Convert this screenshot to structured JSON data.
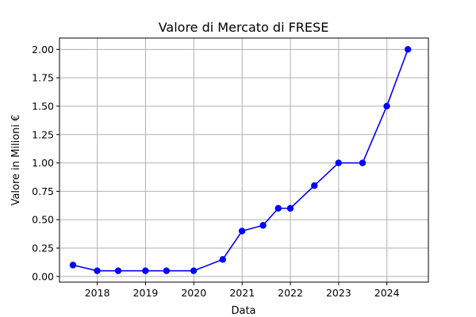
{
  "chart_data": {
    "type": "line",
    "title": "Valore di Mercato di FRESE",
    "xlabel": "Data",
    "ylabel": "Valore in Milioni €",
    "x_ticks": [
      "2018",
      "2019",
      "2020",
      "2021",
      "2022",
      "2023",
      "2024"
    ],
    "y_ticks": [
      "0.00",
      "0.25",
      "0.50",
      "0.75",
      "1.00",
      "1.25",
      "1.50",
      "1.75",
      "2.00"
    ],
    "xlim": [
      "2017-03-21",
      "2024-11-10"
    ],
    "ylim": [
      -0.05,
      2.1
    ],
    "grid": true,
    "series": [
      {
        "color": "#0000ff",
        "x": [
          "2017-07-01",
          "2017-12-31",
          "2018-06-08",
          "2018-12-31",
          "2019-06-08",
          "2019-12-31",
          "2020-08-07",
          "2020-12-31",
          "2021-06-08",
          "2021-10-01",
          "2021-12-31",
          "2022-07-01",
          "2022-12-31",
          "2023-07-01",
          "2023-12-31",
          "2024-06-08"
        ],
        "y": [
          0.1,
          0.05,
          0.05,
          0.05,
          0.05,
          0.05,
          0.15,
          0.4,
          0.45,
          0.6,
          0.6,
          0.8,
          1.0,
          1.0,
          1.5,
          2.0
        ]
      }
    ]
  }
}
